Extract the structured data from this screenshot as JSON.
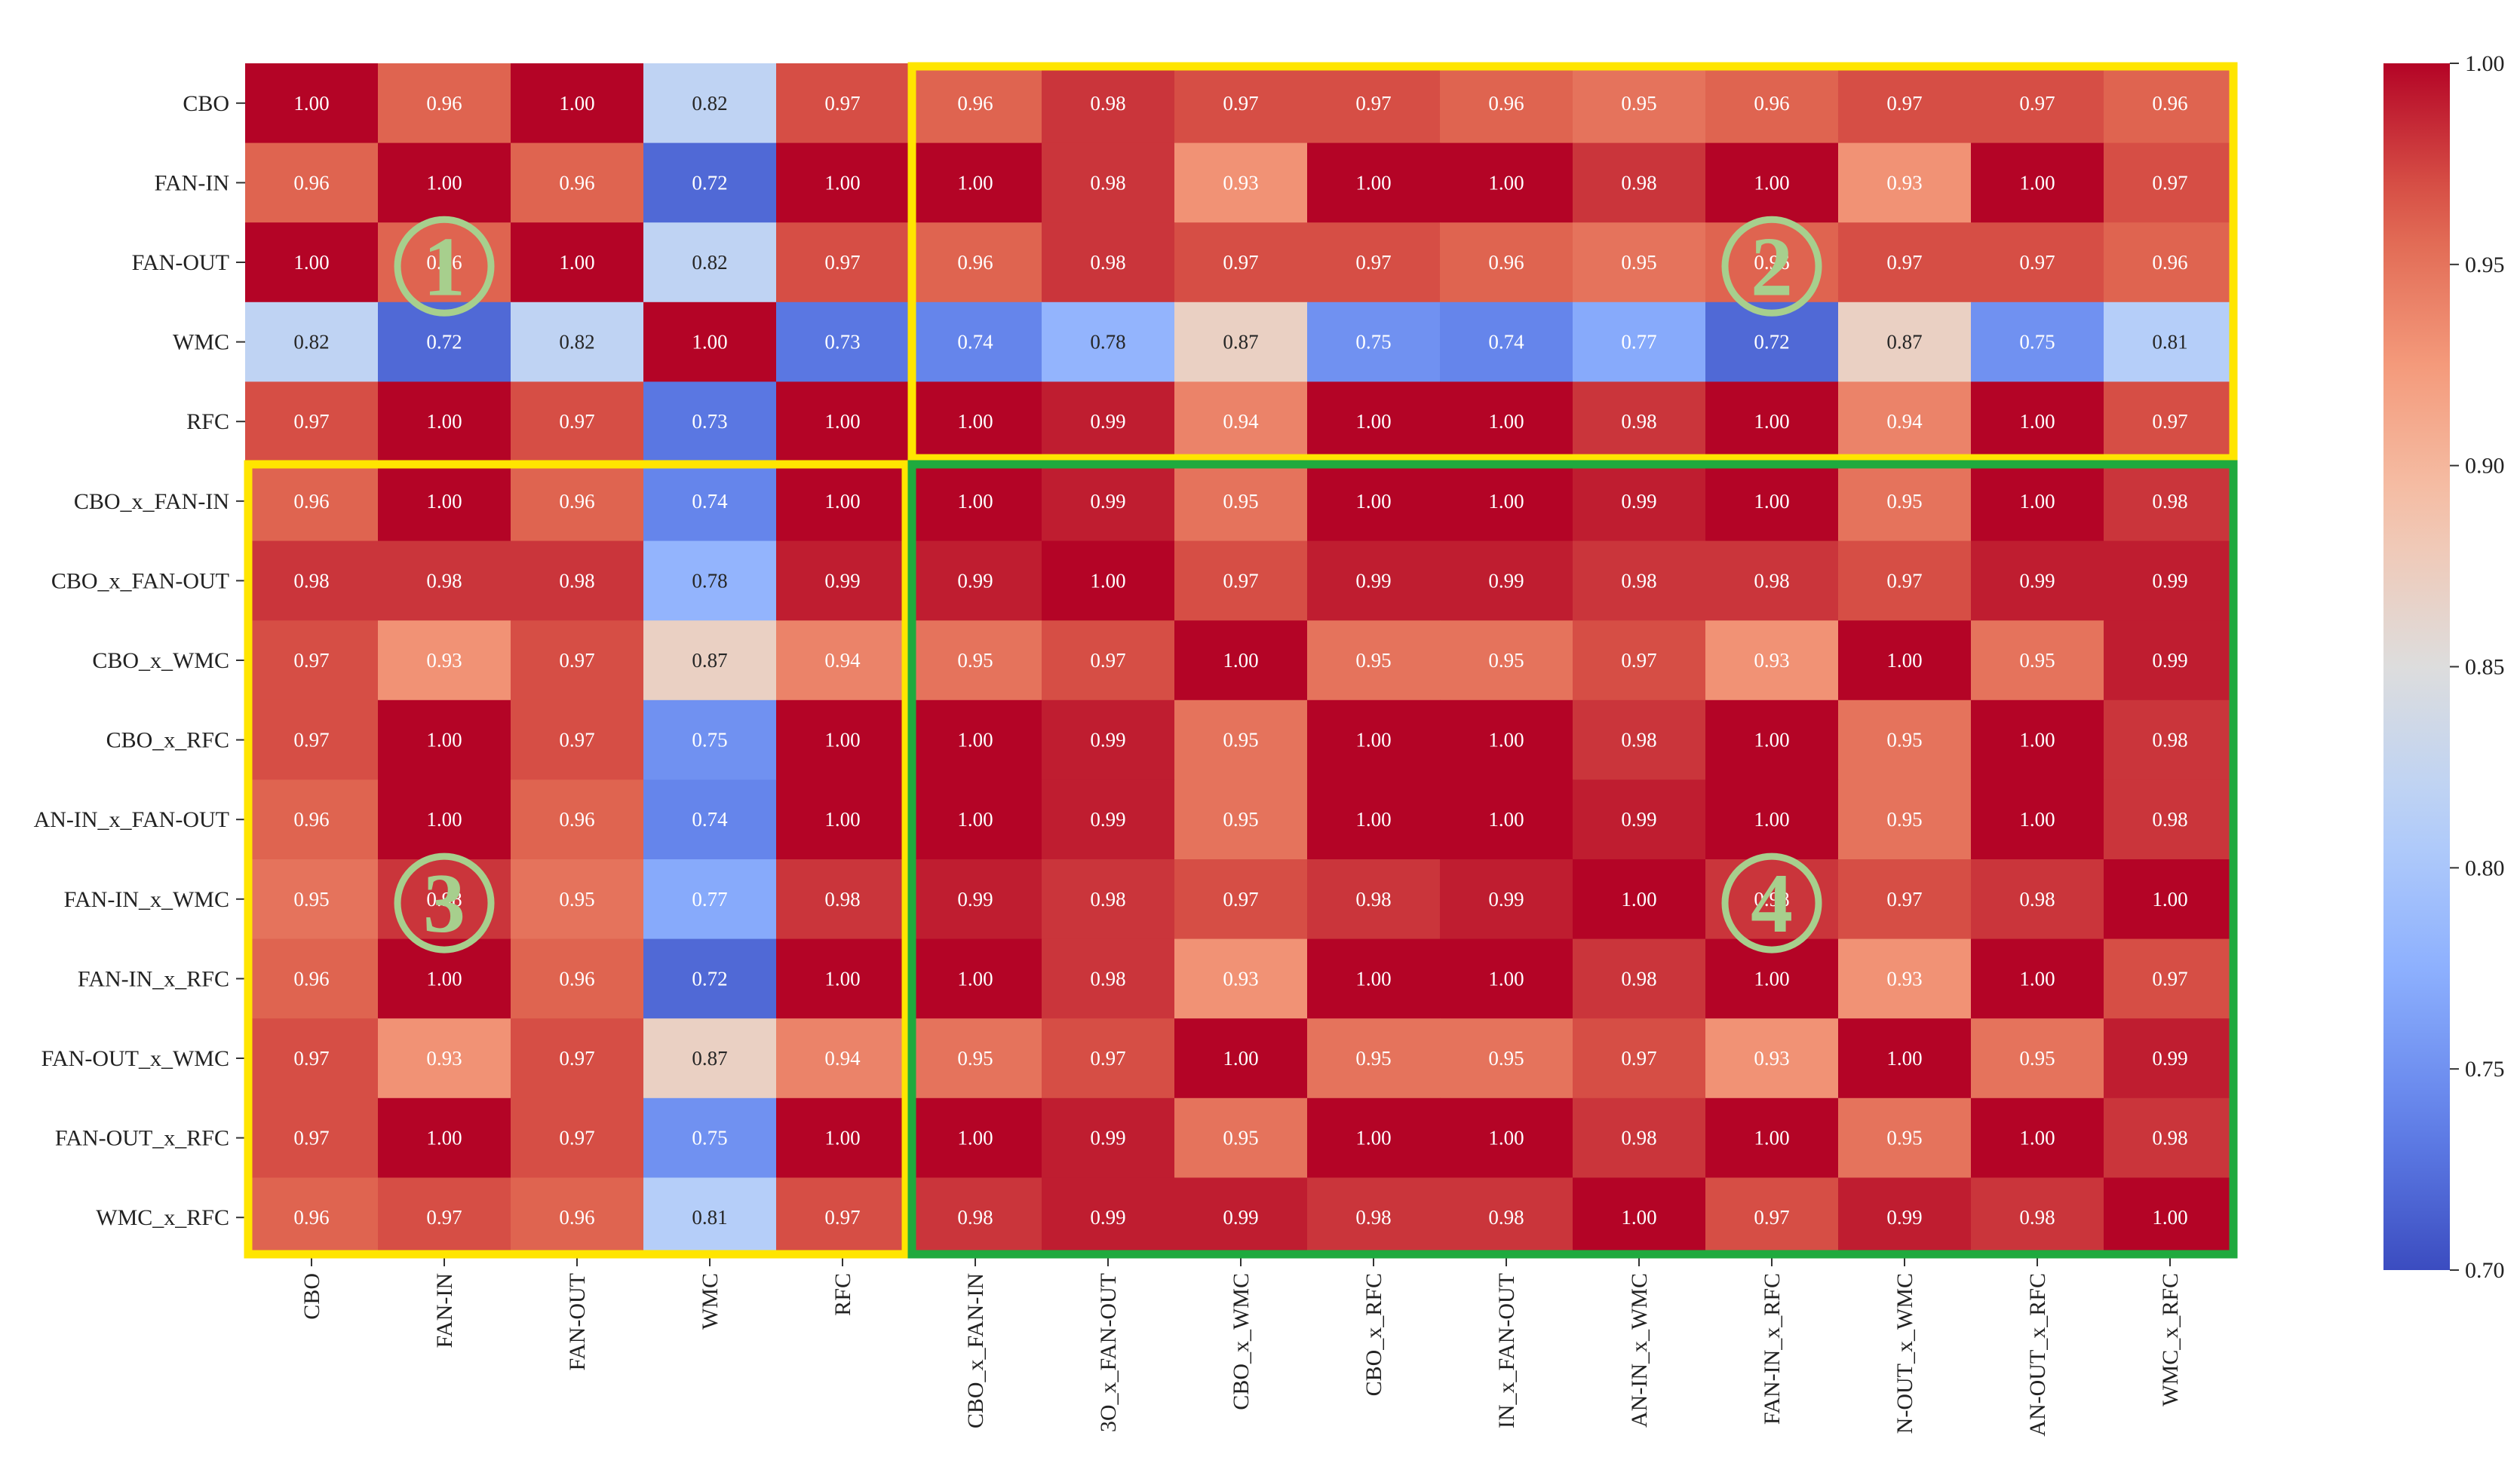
{
  "chart_data": {
    "type": "heatmap",
    "title": "",
    "xlabel": "",
    "ylabel": "",
    "labels": [
      "CBO",
      "FAN-IN",
      "FAN-OUT",
      "WMC",
      "RFC",
      "CBO_x_FAN-IN",
      "CBO_x_FAN-OUT",
      "CBO_x_WMC",
      "CBO_x_RFC",
      "FAN-IN_x_FAN-OUT",
      "FAN-IN_x_WMC",
      "FAN-IN_x_RFC",
      "FAN-OUT_x_WMC",
      "FAN-OUT_x_RFC",
      "WMC_x_RFC"
    ],
    "row_labels": [
      "CBO",
      "FAN-IN",
      "FAN-OUT",
      "WMC",
      "RFC",
      "CBO_x_FAN-IN",
      "CBO_x_FAN-OUT",
      "CBO_x_WMC",
      "CBO_x_RFC",
      "AN-IN_x_FAN-OUT",
      "FAN-IN_x_WMC",
      "FAN-IN_x_RFC",
      "FAN-OUT_x_WMC",
      "FAN-OUT_x_RFC",
      "WMC_x_RFC"
    ],
    "col_labels": [
      "CBO",
      "FAN-IN",
      "FAN-OUT",
      "WMC",
      "RFC",
      "CBO_x_FAN-IN",
      "3O_x_FAN-OUT",
      "CBO_x_WMC",
      "CBO_x_RFC",
      "IN_x_FAN-OUT",
      "AN-IN_x_WMC",
      "FAN-IN_x_RFC",
      "N-OUT_x_WMC",
      "AN-OUT_x_RFC",
      "WMC_x_RFC"
    ],
    "values": [
      [
        1.0,
        0.96,
        1.0,
        0.82,
        0.97,
        0.96,
        0.98,
        0.97,
        0.97,
        0.96,
        0.95,
        0.96,
        0.97,
        0.97,
        0.96
      ],
      [
        0.96,
        1.0,
        0.96,
        0.72,
        1.0,
        1.0,
        0.98,
        0.93,
        1.0,
        1.0,
        0.98,
        1.0,
        0.93,
        1.0,
        0.97
      ],
      [
        1.0,
        0.96,
        1.0,
        0.82,
        0.97,
        0.96,
        0.98,
        0.97,
        0.97,
        0.96,
        0.95,
        0.96,
        0.97,
        0.97,
        0.96
      ],
      [
        0.82,
        0.72,
        0.82,
        1.0,
        0.73,
        0.74,
        0.78,
        0.87,
        0.75,
        0.74,
        0.77,
        0.72,
        0.87,
        0.75,
        0.81
      ],
      [
        0.97,
        1.0,
        0.97,
        0.73,
        1.0,
        1.0,
        0.99,
        0.94,
        1.0,
        1.0,
        0.98,
        1.0,
        0.94,
        1.0,
        0.97
      ],
      [
        0.96,
        1.0,
        0.96,
        0.74,
        1.0,
        1.0,
        0.99,
        0.95,
        1.0,
        1.0,
        0.99,
        1.0,
        0.95,
        1.0,
        0.98
      ],
      [
        0.98,
        0.98,
        0.98,
        0.78,
        0.99,
        0.99,
        1.0,
        0.97,
        0.99,
        0.99,
        0.98,
        0.98,
        0.97,
        0.99,
        0.99
      ],
      [
        0.97,
        0.93,
        0.97,
        0.87,
        0.94,
        0.95,
        0.97,
        1.0,
        0.95,
        0.95,
        0.97,
        0.93,
        1.0,
        0.95,
        0.99
      ],
      [
        0.97,
        1.0,
        0.97,
        0.75,
        1.0,
        1.0,
        0.99,
        0.95,
        1.0,
        1.0,
        0.98,
        1.0,
        0.95,
        1.0,
        0.98
      ],
      [
        0.96,
        1.0,
        0.96,
        0.74,
        1.0,
        1.0,
        0.99,
        0.95,
        1.0,
        1.0,
        0.99,
        1.0,
        0.95,
        1.0,
        0.98
      ],
      [
        0.95,
        0.98,
        0.95,
        0.77,
        0.98,
        0.99,
        0.98,
        0.97,
        0.98,
        0.99,
        1.0,
        0.98,
        0.97,
        0.98,
        1.0
      ],
      [
        0.96,
        1.0,
        0.96,
        0.72,
        1.0,
        1.0,
        0.98,
        0.93,
        1.0,
        1.0,
        0.98,
        1.0,
        0.93,
        1.0,
        0.97
      ],
      [
        0.97,
        0.93,
        0.97,
        0.87,
        0.94,
        0.95,
        0.97,
        1.0,
        0.95,
        0.95,
        0.97,
        0.93,
        1.0,
        0.95,
        0.99
      ],
      [
        0.97,
        1.0,
        0.97,
        0.75,
        1.0,
        1.0,
        0.99,
        0.95,
        1.0,
        1.0,
        0.98,
        1.0,
        0.95,
        1.0,
        0.98
      ],
      [
        0.96,
        0.97,
        0.96,
        0.81,
        0.97,
        0.98,
        0.99,
        0.99,
        0.98,
        0.98,
        1.0,
        0.97,
        0.99,
        0.98,
        1.0
      ]
    ],
    "colormap": "coolwarm",
    "vmin": 0.7,
    "vmax": 1.0,
    "colorbar_ticks": [
      0.7,
      0.75,
      0.8,
      0.85,
      0.9,
      0.95,
      1.0
    ],
    "regions": [
      {
        "label": "①",
        "rows": [
          0,
          4
        ],
        "cols": [
          0,
          4
        ],
        "border_color": ""
      },
      {
        "label": "②",
        "rows": [
          0,
          4
        ],
        "cols": [
          5,
          14
        ],
        "border_color": "#ffe500"
      },
      {
        "label": "③",
        "rows": [
          5,
          14
        ],
        "cols": [
          0,
          4
        ],
        "border_color": "#ffe500"
      },
      {
        "label": "④",
        "rows": [
          5,
          14
        ],
        "cols": [
          5,
          14
        ],
        "border_color": "#1faa3e"
      }
    ],
    "marker_color": "#a7cf8d"
  }
}
